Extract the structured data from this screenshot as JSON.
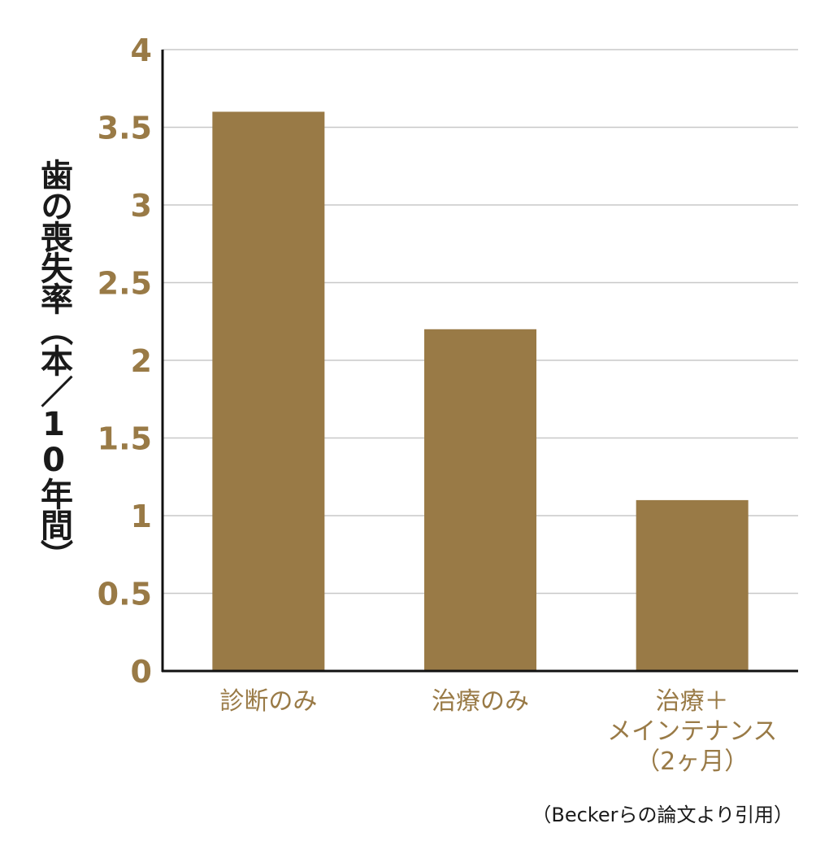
{
  "chart_data": {
    "type": "bar",
    "ylabel": "歯の喪失率（本／10年間）",
    "categories": [
      [
        "診断のみ"
      ],
      [
        "治療のみ"
      ],
      [
        "治療＋",
        "メインテナンス",
        "（2ヶ月）"
      ]
    ],
    "values": [
      3.6,
      2.2,
      1.1
    ],
    "ylim": [
      0,
      4
    ],
    "yticks": [
      "0",
      "0.5",
      "1",
      "1.5",
      "2",
      "2.5",
      "3",
      "3.5",
      "4"
    ],
    "ytick_values": [
      0,
      0.5,
      1,
      1.5,
      2,
      2.5,
      3,
      3.5,
      4
    ],
    "grid": true,
    "colors": {
      "bar": "#997a46",
      "tick_text": "#997a46",
      "axis": "#111111",
      "grid": "#c8c8c8"
    }
  },
  "source_note": "（Beckerらの論文より引用）"
}
